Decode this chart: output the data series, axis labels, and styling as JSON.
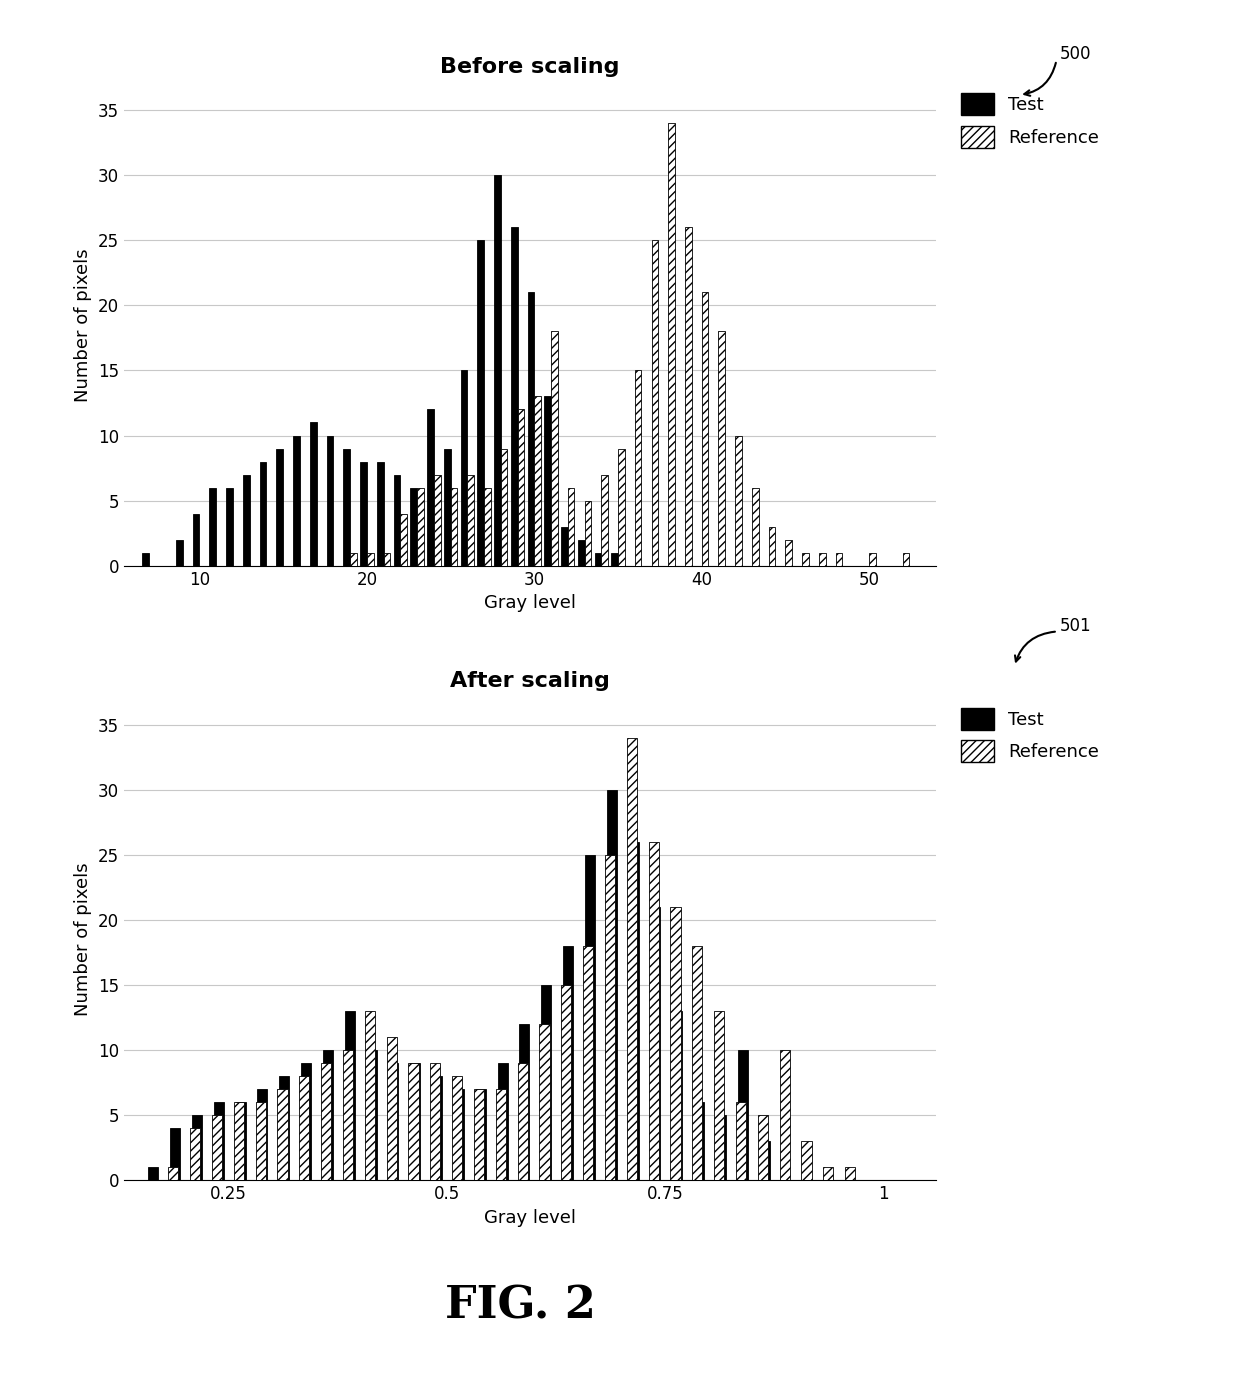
{
  "chart1": {
    "title": "Before scaling",
    "xlabel": "Gray level",
    "ylabel": "Number of pixels",
    "ylim": [
      0,
      37
    ],
    "yticks": [
      0,
      5,
      10,
      15,
      20,
      25,
      30,
      35
    ],
    "xticks": [
      10,
      20,
      30,
      40,
      50
    ],
    "xlim": [
      5.5,
      54
    ],
    "test_x": [
      7,
      8,
      9,
      10,
      11,
      12,
      13,
      14,
      15,
      16,
      17,
      18,
      19,
      20,
      21,
      22,
      23,
      24,
      25,
      26,
      27,
      28,
      29,
      30,
      31,
      32,
      33,
      34,
      35
    ],
    "test_y": [
      1,
      0,
      2,
      4,
      6,
      6,
      7,
      8,
      9,
      10,
      11,
      10,
      9,
      8,
      8,
      7,
      6,
      12,
      9,
      15,
      25,
      30,
      26,
      21,
      13,
      3,
      2,
      1,
      1
    ],
    "ref_x": [
      19,
      20,
      21,
      22,
      23,
      24,
      25,
      26,
      27,
      28,
      29,
      30,
      31,
      32,
      33,
      34,
      35,
      36,
      37,
      38,
      39,
      40,
      41,
      42,
      43,
      44,
      45,
      46,
      47,
      48,
      49,
      50,
      51,
      52
    ],
    "ref_y": [
      1,
      1,
      1,
      4,
      6,
      7,
      6,
      7,
      6,
      9,
      12,
      13,
      18,
      6,
      5,
      7,
      9,
      15,
      25,
      34,
      26,
      21,
      18,
      10,
      6,
      3,
      2,
      1,
      1,
      1,
      0,
      1,
      0,
      1
    ]
  },
  "chart2": {
    "title": "After scaling",
    "xlabel": "Gray level",
    "ylabel": "Number of pixels",
    "ylim": [
      0,
      37
    ],
    "yticks": [
      0,
      5,
      10,
      15,
      20,
      25,
      30,
      35
    ],
    "xticks": [
      0.25,
      0.5,
      0.75,
      1.0
    ],
    "xticklabels": [
      "0.25",
      "0.5",
      "0.75",
      "1"
    ],
    "xlim": [
      0.13,
      1.06
    ],
    "test_x": [
      0.175,
      0.2,
      0.225,
      0.25,
      0.275,
      0.3,
      0.325,
      0.35,
      0.375,
      0.4,
      0.425,
      0.45,
      0.475,
      0.5,
      0.525,
      0.55,
      0.575,
      0.6,
      0.625,
      0.65,
      0.675,
      0.7,
      0.725,
      0.75,
      0.775,
      0.8,
      0.825,
      0.85,
      0.875
    ],
    "test_y": [
      1,
      4,
      5,
      6,
      6,
      7,
      8,
      9,
      10,
      13,
      10,
      9,
      9,
      8,
      7,
      7,
      9,
      12,
      15,
      18,
      25,
      30,
      26,
      21,
      13,
      6,
      5,
      10,
      3
    ],
    "ref_x": [
      0.175,
      0.2,
      0.225,
      0.25,
      0.275,
      0.3,
      0.325,
      0.35,
      0.375,
      0.4,
      0.425,
      0.45,
      0.475,
      0.5,
      0.525,
      0.55,
      0.575,
      0.6,
      0.625,
      0.65,
      0.675,
      0.7,
      0.725,
      0.75,
      0.775,
      0.8,
      0.825,
      0.85,
      0.875,
      0.9,
      0.925,
      0.95
    ],
    "ref_y": [
      1,
      4,
      5,
      6,
      6,
      7,
      8,
      9,
      10,
      13,
      11,
      9,
      9,
      8,
      7,
      7,
      9,
      12,
      15,
      18,
      25,
      34,
      26,
      21,
      18,
      13,
      6,
      5,
      10,
      3,
      1,
      1
    ]
  },
  "label_500": "500",
  "label_501": "501",
  "fig_label": "FIG. 2",
  "bg_color": "#ffffff",
  "bar_color_test": "#000000",
  "bar_color_ref": "#ffffff",
  "bar_edgecolor": "#000000",
  "grid_color": "#c8c8c8",
  "title_fontsize": 16,
  "axis_fontsize": 13,
  "tick_fontsize": 12
}
